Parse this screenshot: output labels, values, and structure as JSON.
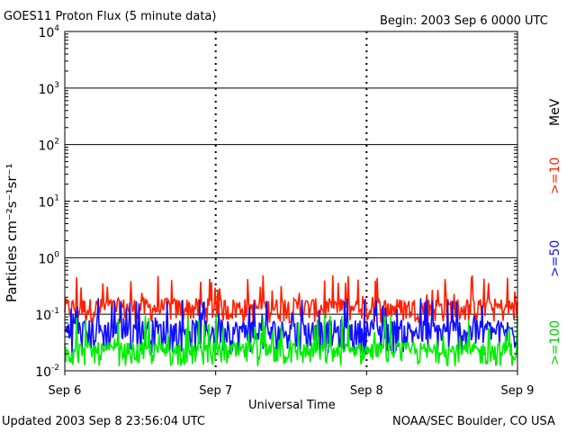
{
  "header": {
    "title": "GOES11 Proton Flux (5 minute data)",
    "begin": "Begin: 2003 Sep 6 0000 UTC"
  },
  "footer": {
    "updated": "Updated 2003 Sep  8 23:56:04 UTC",
    "source": "NOAA/SEC Boulder, CO USA"
  },
  "chart_data": {
    "type": "line",
    "title": "GOES11 Proton Flux (5 minute data)",
    "xlabel": "Universal Time",
    "ylabel": "Particles cm⁻²s⁻¹sr⁻¹",
    "y_scale": "log",
    "ylim": [
      0.01,
      10000
    ],
    "y_ticks": [
      {
        "base": "10",
        "exp": "-2"
      },
      {
        "base": "10",
        "exp": "-1"
      },
      {
        "base": "10",
        "exp": "0"
      },
      {
        "base": "10",
        "exp": "1"
      },
      {
        "base": "10",
        "exp": "2"
      },
      {
        "base": "10",
        "exp": "3"
      },
      {
        "base": "10",
        "exp": "4"
      }
    ],
    "x_ticks": [
      "Sep 6",
      "Sep 7",
      "Sep 8",
      "Sep 9"
    ],
    "xlim_days": [
      0,
      3
    ],
    "unit_label": "MeV",
    "grid": true,
    "dashed_levels": [
      10
    ],
    "series": [
      {
        "name": ">=10",
        "color": "#ff2000",
        "baseline": 0.12,
        "min": 0.07,
        "max": 0.5
      },
      {
        "name": ">=50",
        "color": "#1010ff",
        "baseline": 0.05,
        "min": 0.02,
        "max": 0.2
      },
      {
        "name": ">=100",
        "color": "#00ee00",
        "baseline": 0.02,
        "min": 0.012,
        "max": 0.1
      }
    ]
  }
}
